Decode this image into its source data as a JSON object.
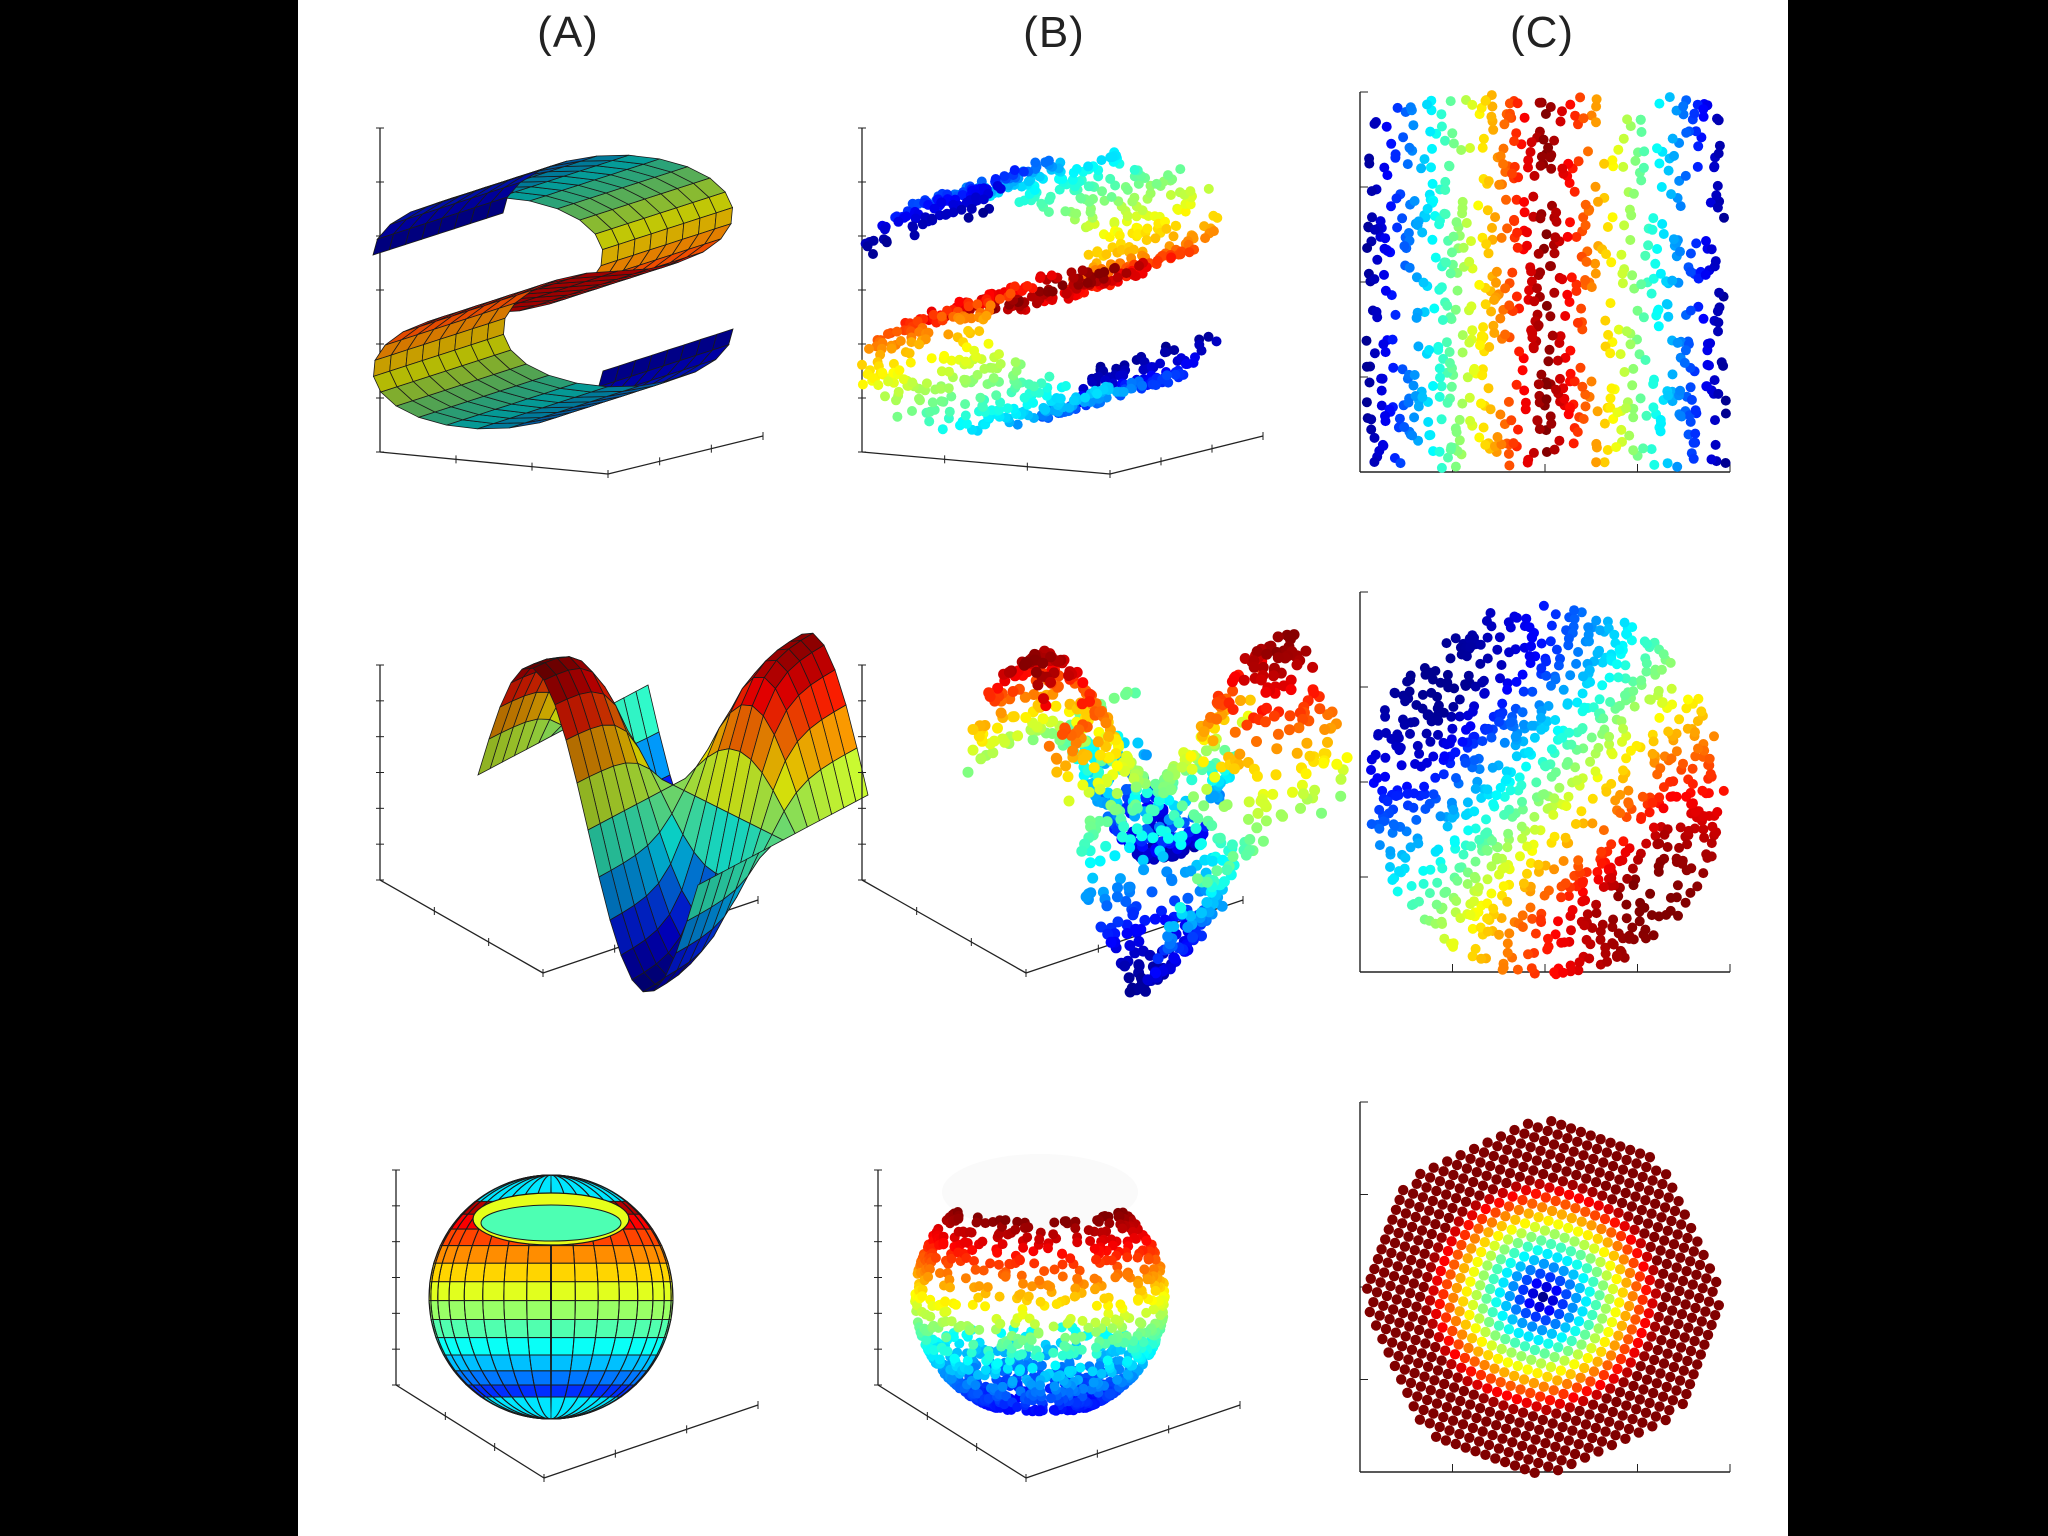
{
  "figure": {
    "column_labels": [
      "(A)",
      "(B)",
      "(C)"
    ],
    "rows": [
      {
        "manifold": "s-curve"
      },
      {
        "manifold": "twin-peaks"
      },
      {
        "manifold": "punctured-sphere"
      }
    ],
    "columns": [
      {
        "content": "original-surface"
      },
      {
        "content": "sampled-points-3d"
      },
      {
        "content": "2d-embedding"
      }
    ],
    "colormap": [
      "#00008f",
      "#0000ff",
      "#0080ff",
      "#00ffff",
      "#80ff80",
      "#ffff00",
      "#ff8000",
      "#ff0000",
      "#800000"
    ]
  }
}
